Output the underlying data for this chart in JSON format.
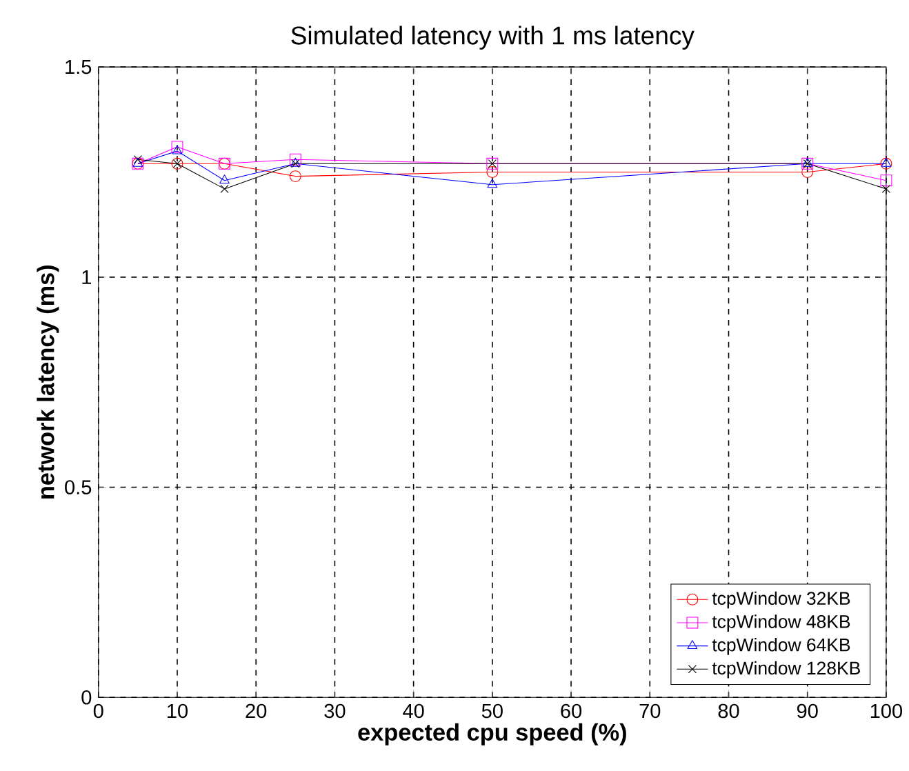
{
  "chart_data": {
    "type": "line",
    "title": "Simulated latency with 1 ms latency",
    "xlabel": "expected cpu speed (%)",
    "ylabel": "network latency (ms)",
    "x": [
      5,
      10,
      16,
      25,
      50,
      90,
      100
    ],
    "series": [
      {
        "name": "tcpWindow 32KB",
        "color": "#ff0000",
        "marker": "circle",
        "values": [
          1.27,
          1.27,
          1.27,
          1.24,
          1.25,
          1.25,
          1.27
        ]
      },
      {
        "name": "tcpWindow 48KB",
        "color": "#ff00ff",
        "marker": "square",
        "values": [
          1.27,
          1.31,
          1.27,
          1.28,
          1.27,
          1.27,
          1.23
        ]
      },
      {
        "name": "tcpWindow 64KB",
        "color": "#0000ff",
        "marker": "triangle",
        "values": [
          1.27,
          1.3,
          1.23,
          1.27,
          1.22,
          1.27,
          1.27
        ]
      },
      {
        "name": "tcpWindow 128KB",
        "color": "#000000",
        "marker": "cross",
        "values": [
          1.28,
          1.27,
          1.21,
          1.27,
          1.27,
          1.27,
          1.21
        ]
      }
    ],
    "xlim": [
      0,
      100
    ],
    "ylim": [
      0,
      1.5
    ],
    "xticks": [
      0,
      10,
      20,
      30,
      40,
      50,
      60,
      70,
      80,
      90,
      100
    ],
    "yticks": [
      0,
      0.5,
      1,
      1.5
    ],
    "grid": true,
    "legend": "bottom right",
    "line_style": "solid"
  }
}
